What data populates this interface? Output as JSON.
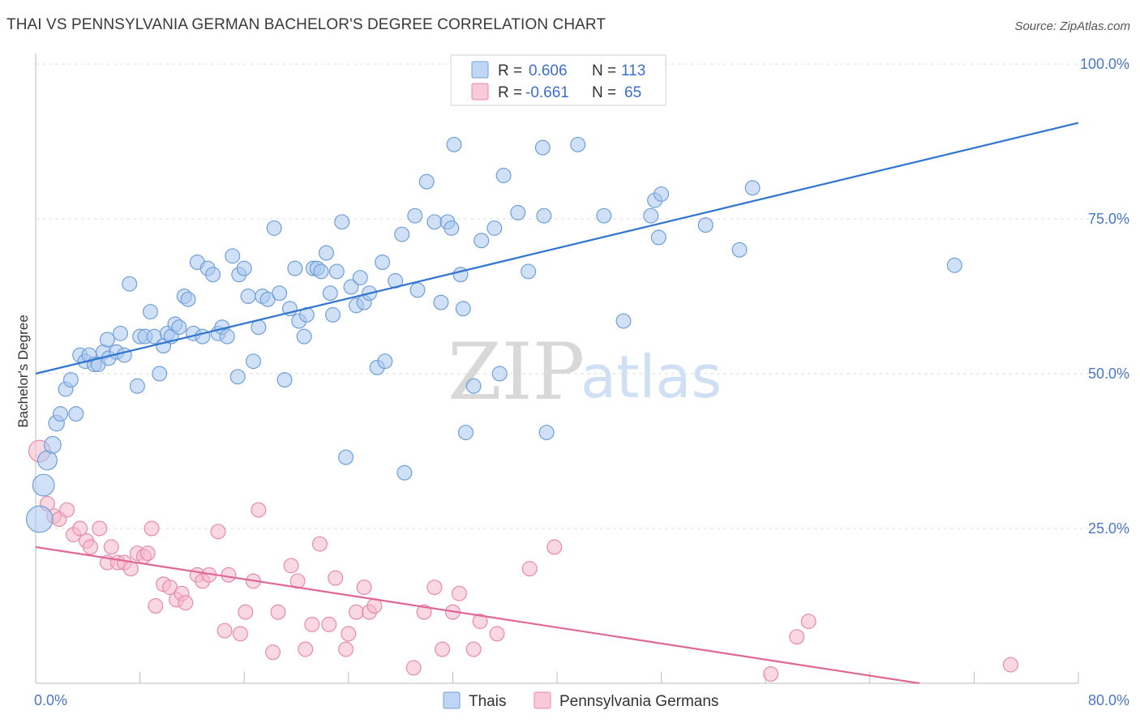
{
  "title": "THAI VS PENNSYLVANIA GERMAN BACHELOR'S DEGREE CORRELATION CHART",
  "source": "Source: ZipAtlas.com",
  "watermark": {
    "zip": "ZIP",
    "atlas": "atlas"
  },
  "legend": {
    "rows": [
      {
        "r_label": "R =",
        "r_value": "0.606",
        "n_label": "N =",
        "n_value": "113",
        "color": "#a9c8f0"
      },
      {
        "r_label": "R =",
        "r_value": "-0.661",
        "n_label": "N =",
        "n_value": "65",
        "color": "#f5b8cc"
      }
    ]
  },
  "bottom_legend": [
    "Thais",
    "Pennsylvania Germans"
  ],
  "colors": {
    "thai_fill": "#a9c8f0",
    "thai_stroke": "#6f9fd9",
    "thai_line": "#2f74d0",
    "pg_fill": "#f5b8cc",
    "pg_stroke": "#e88aa8",
    "pg_line": "#e06794",
    "tick_label": "#4a78c8",
    "grid": "#dcdcdc"
  },
  "chart_data": {
    "type": "scatter",
    "title": "THAI VS PENNSYLVANIA GERMAN BACHELOR'S DEGREE CORRELATION CHART",
    "xlabel": "",
    "ylabel": "Bachelor's Degree",
    "xlim": [
      0,
      80
    ],
    "ylim": [
      0,
      100
    ],
    "x_tick_labels": [
      "0.0%",
      "80.0%"
    ],
    "y_tick_labels": [
      "25.0%",
      "50.0%",
      "75.0%",
      "100.0%"
    ],
    "y_ticks": [
      25,
      50,
      75,
      100
    ],
    "grid": true,
    "legend_position": "top-center",
    "series": [
      {
        "name": "Thais",
        "trend": {
          "x": [
            0,
            80
          ],
          "y": [
            50.0,
            90.5
          ]
        },
        "points": [
          [
            0.3,
            26.5,
            22
          ],
          [
            0.6,
            32.0,
            18
          ],
          [
            0.9,
            36.0,
            16
          ],
          [
            1.3,
            38.5,
            14
          ],
          [
            1.6,
            42.0,
            13
          ],
          [
            1.9,
            43.5,
            12
          ],
          [
            2.3,
            47.5,
            12
          ],
          [
            2.7,
            49.0,
            12
          ],
          [
            3.1,
            43.5,
            12
          ],
          [
            3.4,
            53.0,
            12
          ],
          [
            3.8,
            52.0,
            12
          ],
          [
            4.1,
            53.0,
            12
          ],
          [
            4.5,
            51.5,
            12
          ],
          [
            4.8,
            51.5,
            12
          ],
          [
            5.2,
            53.5,
            12
          ],
          [
            5.6,
            52.5,
            12
          ],
          [
            5.5,
            55.5,
            12
          ],
          [
            6.2,
            53.5,
            12
          ],
          [
            6.5,
            56.5,
            12
          ],
          [
            6.8,
            53.0,
            12
          ],
          [
            7.2,
            64.5,
            12
          ],
          [
            7.8,
            48.0,
            12
          ],
          [
            8.0,
            56.0,
            12
          ],
          [
            8.4,
            56.0,
            12
          ],
          [
            8.8,
            60.0,
            12
          ],
          [
            9.1,
            56.0,
            12
          ],
          [
            9.5,
            50.0,
            12
          ],
          [
            9.8,
            54.5,
            12
          ],
          [
            10.1,
            56.5,
            12
          ],
          [
            10.4,
            56.0,
            12
          ],
          [
            10.7,
            58.0,
            12
          ],
          [
            11.0,
            57.5,
            12
          ],
          [
            11.4,
            62.5,
            12
          ],
          [
            11.7,
            62.0,
            12
          ],
          [
            12.1,
            56.5,
            12
          ],
          [
            12.4,
            68.0,
            12
          ],
          [
            12.8,
            56.0,
            12
          ],
          [
            13.2,
            67.0,
            12
          ],
          [
            13.6,
            66.0,
            12
          ],
          [
            14.0,
            56.5,
            12
          ],
          [
            14.3,
            57.5,
            12
          ],
          [
            14.7,
            56.0,
            12
          ],
          [
            15.1,
            69.0,
            12
          ],
          [
            15.5,
            49.5,
            12
          ],
          [
            15.6,
            66.0,
            12
          ],
          [
            16.0,
            67.0,
            12
          ],
          [
            16.3,
            62.5,
            12
          ],
          [
            16.7,
            52.0,
            12
          ],
          [
            17.1,
            57.5,
            12
          ],
          [
            17.4,
            62.5,
            12
          ],
          [
            17.8,
            62.0,
            12
          ],
          [
            18.3,
            73.5,
            12
          ],
          [
            18.7,
            63.0,
            12
          ],
          [
            19.1,
            49.0,
            12
          ],
          [
            19.5,
            60.5,
            12
          ],
          [
            19.9,
            67.0,
            12
          ],
          [
            20.2,
            58.5,
            12
          ],
          [
            20.6,
            56.0,
            12
          ],
          [
            20.8,
            59.5,
            12
          ],
          [
            21.3,
            67.0,
            12
          ],
          [
            21.6,
            67.0,
            12
          ],
          [
            21.9,
            66.5,
            12
          ],
          [
            22.3,
            69.5,
            12
          ],
          [
            22.6,
            63.0,
            12
          ],
          [
            22.8,
            59.5,
            12
          ],
          [
            23.1,
            66.5,
            12
          ],
          [
            23.5,
            74.5,
            12
          ],
          [
            23.8,
            36.5,
            12
          ],
          [
            24.2,
            64.0,
            12
          ],
          [
            24.6,
            61.0,
            12
          ],
          [
            24.9,
            65.5,
            12
          ],
          [
            25.2,
            61.5,
            12
          ],
          [
            25.6,
            63.0,
            12
          ],
          [
            26.2,
            51.0,
            12
          ],
          [
            26.6,
            68.0,
            12
          ],
          [
            26.8,
            52.0,
            12
          ],
          [
            27.6,
            65.0,
            12
          ],
          [
            28.1,
            72.5,
            12
          ],
          [
            28.3,
            34.0,
            12
          ],
          [
            29.1,
            75.5,
            12
          ],
          [
            29.3,
            63.5,
            12
          ],
          [
            30.0,
            81.0,
            12
          ],
          [
            30.6,
            74.5,
            12
          ],
          [
            31.1,
            61.5,
            12
          ],
          [
            31.6,
            74.5,
            12
          ],
          [
            31.9,
            73.5,
            12
          ],
          [
            32.1,
            87.0,
            12
          ],
          [
            32.6,
            66.0,
            12
          ],
          [
            32.8,
            60.5,
            12
          ],
          [
            33.0,
            40.5,
            12
          ],
          [
            33.6,
            48.0,
            12
          ],
          [
            34.2,
            71.5,
            12
          ],
          [
            35.2,
            73.5,
            12
          ],
          [
            35.6,
            50.0,
            12
          ],
          [
            35.9,
            82.0,
            12
          ],
          [
            37.0,
            76.0,
            12
          ],
          [
            37.8,
            66.5,
            12
          ],
          [
            38.9,
            86.5,
            12
          ],
          [
            39.0,
            75.5,
            12
          ],
          [
            39.2,
            40.5,
            12
          ],
          [
            41.6,
            87.0,
            12
          ],
          [
            43.6,
            75.5,
            12
          ],
          [
            45.1,
            58.5,
            12
          ],
          [
            47.2,
            75.5,
            12
          ],
          [
            47.5,
            78.0,
            12
          ],
          [
            47.8,
            72.0,
            12
          ],
          [
            48.0,
            79.0,
            12
          ],
          [
            51.4,
            74.0,
            12
          ],
          [
            54.0,
            70.0,
            12
          ],
          [
            55.0,
            80.0,
            12
          ],
          [
            70.5,
            67.5,
            12
          ]
        ]
      },
      {
        "name": "Pennsylvania Germans",
        "trend": {
          "x": [
            0,
            67.8
          ],
          "y": [
            22.0,
            0.0
          ]
        },
        "points": [
          [
            0.3,
            37.5,
            18
          ],
          [
            0.9,
            29.0,
            12
          ],
          [
            1.4,
            27.0,
            12
          ],
          [
            1.8,
            26.5,
            12
          ],
          [
            2.4,
            28.0,
            12
          ],
          [
            2.9,
            24.0,
            12
          ],
          [
            3.4,
            25.0,
            12
          ],
          [
            3.9,
            23.0,
            12
          ],
          [
            4.2,
            22.0,
            12
          ],
          [
            4.9,
            25.0,
            12
          ],
          [
            5.5,
            19.5,
            12
          ],
          [
            5.8,
            22.0,
            12
          ],
          [
            6.3,
            19.5,
            12
          ],
          [
            6.8,
            19.5,
            12
          ],
          [
            7.3,
            18.5,
            12
          ],
          [
            7.8,
            21.0,
            12
          ],
          [
            8.3,
            20.5,
            12
          ],
          [
            8.6,
            21.0,
            12
          ],
          [
            8.9,
            25.0,
            12
          ],
          [
            9.2,
            12.5,
            12
          ],
          [
            9.8,
            16.0,
            12
          ],
          [
            10.3,
            15.5,
            12
          ],
          [
            10.8,
            13.5,
            12
          ],
          [
            11.2,
            14.5,
            12
          ],
          [
            11.5,
            13.0,
            12
          ],
          [
            12.4,
            17.5,
            12
          ],
          [
            12.8,
            16.5,
            12
          ],
          [
            13.3,
            17.5,
            12
          ],
          [
            14.0,
            24.5,
            12
          ],
          [
            14.5,
            8.5,
            12
          ],
          [
            14.8,
            17.5,
            12
          ],
          [
            15.7,
            8.0,
            12
          ],
          [
            16.1,
            11.5,
            12
          ],
          [
            16.7,
            16.5,
            12
          ],
          [
            17.1,
            28.0,
            12
          ],
          [
            18.2,
            5.0,
            12
          ],
          [
            18.6,
            11.5,
            12
          ],
          [
            19.6,
            19.0,
            12
          ],
          [
            20.1,
            16.5,
            12
          ],
          [
            20.7,
            5.5,
            12
          ],
          [
            21.2,
            9.5,
            12
          ],
          [
            21.8,
            22.5,
            12
          ],
          [
            22.5,
            9.5,
            12
          ],
          [
            23.0,
            17.0,
            12
          ],
          [
            23.8,
            5.5,
            12
          ],
          [
            24.0,
            8.0,
            12
          ],
          [
            24.6,
            11.5,
            12
          ],
          [
            25.2,
            15.5,
            12
          ],
          [
            25.6,
            11.5,
            12
          ],
          [
            26.0,
            12.5,
            12
          ],
          [
            29.0,
            2.5,
            12
          ],
          [
            29.8,
            11.5,
            12
          ],
          [
            30.6,
            15.5,
            12
          ],
          [
            31.2,
            5.5,
            12
          ],
          [
            32.0,
            11.5,
            12
          ],
          [
            32.5,
            14.5,
            12
          ],
          [
            33.6,
            5.5,
            12
          ],
          [
            34.1,
            10.0,
            12
          ],
          [
            35.4,
            8.0,
            12
          ],
          [
            37.9,
            18.5,
            12
          ],
          [
            39.8,
            22.0,
            12
          ],
          [
            56.4,
            1.5,
            12
          ],
          [
            58.4,
            7.5,
            12
          ],
          [
            59.3,
            10.0,
            12
          ],
          [
            74.8,
            3.0,
            12
          ]
        ]
      }
    ]
  }
}
